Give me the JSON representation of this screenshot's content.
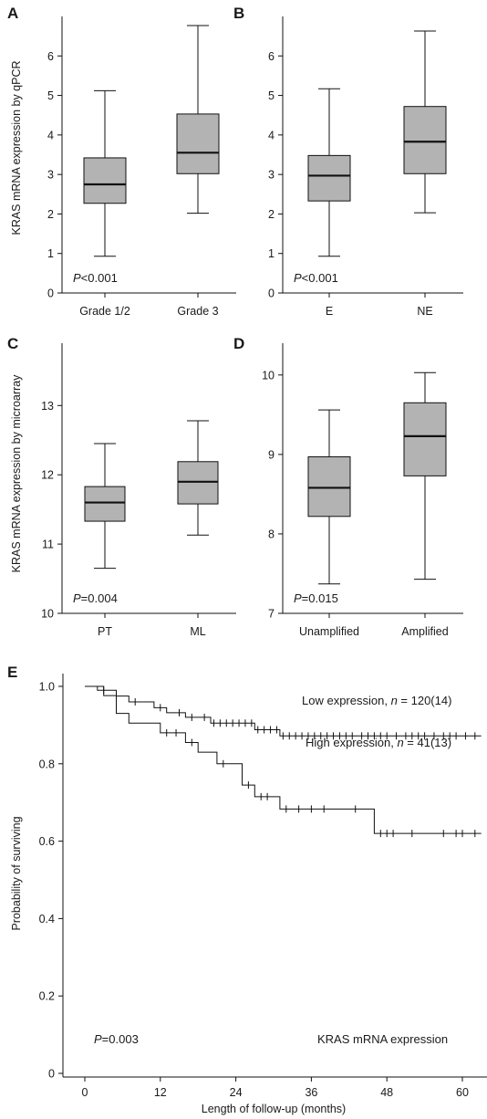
{
  "y_title_top": "KRAS mRNA expression by qPCR",
  "y_title_mid": "KRAS mRNA expression by microarray",
  "chart_data": [
    {
      "panel": "A",
      "type": "box",
      "categories": [
        "Grade 1/2",
        "Grade 3"
      ],
      "boxes": [
        {
          "min": 0.93,
          "q1": 2.27,
          "median": 2.75,
          "q3": 3.42,
          "max": 5.12
        },
        {
          "min": 2.02,
          "q1": 3.02,
          "median": 3.55,
          "q3": 4.53,
          "max": 6.77
        }
      ],
      "ylim": [
        0,
        7
      ],
      "yticks": [
        "0",
        "1",
        "2",
        "3",
        "4",
        "5",
        "6"
      ],
      "annotation": {
        "italic": "P",
        "text": "<0.001"
      }
    },
    {
      "panel": "B",
      "type": "box",
      "categories": [
        "E",
        "NE"
      ],
      "boxes": [
        {
          "min": 0.93,
          "q1": 2.33,
          "median": 2.97,
          "q3": 3.48,
          "max": 5.17
        },
        {
          "min": 2.03,
          "q1": 3.02,
          "median": 3.83,
          "q3": 4.72,
          "max": 6.63
        }
      ],
      "ylim": [
        0,
        7
      ],
      "yticks": [
        "0",
        "1",
        "2",
        "3",
        "4",
        "5",
        "6"
      ],
      "annotation": {
        "italic": "P",
        "text": "<0.001"
      }
    },
    {
      "panel": "C",
      "type": "box",
      "categories": [
        "PT",
        "ML"
      ],
      "boxes": [
        {
          "min": 10.65,
          "q1": 11.33,
          "median": 11.6,
          "q3": 11.83,
          "max": 12.45
        },
        {
          "min": 11.13,
          "q1": 11.58,
          "median": 11.9,
          "q3": 12.19,
          "max": 12.78
        }
      ],
      "ylim": [
        10,
        13.9
      ],
      "yticks": [
        "10",
        "11",
        "12",
        "13"
      ],
      "annotation": {
        "italic": "P",
        "text": "=0.004"
      }
    },
    {
      "panel": "D",
      "type": "box",
      "categories": [
        "Unamplified",
        "Amplified"
      ],
      "boxes": [
        {
          "min": 7.37,
          "q1": 8.22,
          "median": 8.58,
          "q3": 8.97,
          "max": 9.56
        },
        {
          "min": 7.43,
          "q1": 8.73,
          "median": 9.23,
          "q3": 9.65,
          "max": 10.03
        }
      ],
      "ylim": [
        7,
        10.4
      ],
      "yticks": [
        "7",
        "8",
        "9",
        "10"
      ],
      "annotation": {
        "italic": "P",
        "text": "=0.015"
      }
    },
    {
      "panel": "E",
      "type": "line",
      "xlabel": "Length of follow-up (months)",
      "ylabel": "Probability of surviving",
      "xlim": [
        0,
        63
      ],
      "ylim": [
        0,
        1.05
      ],
      "xticks": [
        "0",
        "12",
        "24",
        "36",
        "48",
        "60"
      ],
      "yticks": [
        "0",
        "0.2",
        "0.4",
        "0.6",
        "0.8",
        "1.0"
      ],
      "series": [
        {
          "label_text": "Low expression, ",
          "label_italic": "n",
          "label_tail": " = 120(14)",
          "steps": [
            [
              0,
              1.0
            ],
            [
              2,
              0.99
            ],
            [
              5,
              0.975
            ],
            [
              7,
              0.96
            ],
            [
              11,
              0.945
            ],
            [
              13,
              0.932
            ],
            [
              16,
              0.92
            ],
            [
              20,
              0.905
            ],
            [
              27,
              0.888
            ],
            [
              31,
              0.872
            ],
            [
              63,
              0.872
            ]
          ],
          "censored": [
            [
              3,
              0.99
            ],
            [
              8,
              0.96
            ],
            [
              12,
              0.945
            ],
            [
              15,
              0.932
            ],
            [
              17,
              0.92
            ],
            [
              19,
              0.92
            ],
            [
              20.5,
              0.905
            ],
            [
              21.5,
              0.905
            ],
            [
              22.5,
              0.905
            ],
            [
              23.5,
              0.905
            ],
            [
              24.5,
              0.905
            ],
            [
              25.5,
              0.905
            ],
            [
              26.5,
              0.905
            ],
            [
              27.5,
              0.888
            ],
            [
              28.5,
              0.888
            ],
            [
              29.5,
              0.888
            ],
            [
              30.5,
              0.888
            ],
            [
              31.5,
              0.872
            ],
            [
              32.5,
              0.872
            ],
            [
              33.5,
              0.872
            ],
            [
              34.5,
              0.872
            ],
            [
              35.5,
              0.872
            ],
            [
              36.5,
              0.872
            ],
            [
              37.5,
              0.872
            ],
            [
              38.5,
              0.872
            ],
            [
              39.5,
              0.872
            ],
            [
              40.5,
              0.872
            ],
            [
              41.5,
              0.872
            ],
            [
              42.5,
              0.872
            ],
            [
              44,
              0.872
            ],
            [
              45,
              0.872
            ],
            [
              46,
              0.872
            ],
            [
              47,
              0.872
            ],
            [
              48,
              0.872
            ],
            [
              49.5,
              0.872
            ],
            [
              51,
              0.872
            ],
            [
              52,
              0.872
            ],
            [
              53,
              0.872
            ],
            [
              54,
              0.872
            ],
            [
              55.5,
              0.872
            ],
            [
              57,
              0.872
            ],
            [
              58,
              0.872
            ],
            [
              59,
              0.872
            ],
            [
              60.5,
              0.872
            ],
            [
              62,
              0.872
            ]
          ]
        },
        {
          "label_text": "High expression, ",
          "label_italic": "n",
          "label_tail": " = 41(13)",
          "steps": [
            [
              0,
              1.0
            ],
            [
              3,
              0.976
            ],
            [
              5,
              0.93
            ],
            [
              7,
              0.905
            ],
            [
              12,
              0.88
            ],
            [
              16,
              0.855
            ],
            [
              18,
              0.83
            ],
            [
              21,
              0.8
            ],
            [
              25,
              0.745
            ],
            [
              27,
              0.715
            ],
            [
              31,
              0.683
            ],
            [
              46,
              0.62
            ],
            [
              63,
              0.62
            ]
          ],
          "censored": [
            [
              13,
              0.88
            ],
            [
              14.5,
              0.88
            ],
            [
              17,
              0.855
            ],
            [
              22,
              0.8
            ],
            [
              26,
              0.745
            ],
            [
              28,
              0.715
            ],
            [
              29,
              0.715
            ],
            [
              32,
              0.683
            ],
            [
              34,
              0.683
            ],
            [
              36,
              0.683
            ],
            [
              38,
              0.683
            ],
            [
              43,
              0.683
            ],
            [
              47,
              0.62
            ],
            [
              48,
              0.62
            ],
            [
              49,
              0.62
            ],
            [
              52,
              0.62
            ],
            [
              57,
              0.62
            ],
            [
              59,
              0.62
            ],
            [
              60,
              0.62
            ],
            [
              62,
              0.62
            ]
          ]
        }
      ],
      "annotation": {
        "italic": "P",
        "text": "=0.003"
      },
      "caption": "KRAS mRNA expression"
    }
  ]
}
